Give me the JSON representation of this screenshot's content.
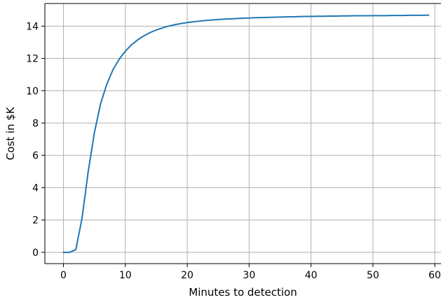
{
  "chart_data": {
    "type": "line",
    "title": "",
    "xlabel": "Minutes to detection",
    "ylabel": "Cost in $K",
    "xlim": [
      -3,
      61
    ],
    "ylim": [
      -0.7,
      15.4
    ],
    "xticks": [
      0,
      10,
      20,
      30,
      40,
      50,
      60
    ],
    "yticks": [
      0,
      2,
      4,
      6,
      8,
      10,
      12,
      14
    ],
    "grid": true,
    "legend": "none",
    "colors": {
      "line": "#1f77b4",
      "grid": "#b0b0b0",
      "axis": "#000000"
    },
    "series": [
      {
        "x": [
          0,
          1,
          2,
          3,
          4,
          5,
          6,
          7,
          8,
          9,
          10,
          11,
          12,
          13,
          14,
          15,
          16,
          17,
          18,
          19,
          20,
          21,
          22,
          23,
          24,
          25,
          26,
          27,
          28,
          29,
          30,
          31,
          32,
          33,
          34,
          35,
          36,
          37,
          38,
          39,
          40,
          41,
          42,
          43,
          44,
          45,
          46,
          47,
          48,
          49,
          50,
          51,
          52,
          53,
          54,
          55,
          56,
          57,
          58,
          59
        ],
        "values": [
          0,
          0,
          0.17,
          2.1,
          5.0,
          7.4,
          9.2,
          10.4,
          11.3,
          11.95,
          12.45,
          12.85,
          13.15,
          13.4,
          13.6,
          13.76,
          13.89,
          14.0,
          14.09,
          14.16,
          14.22,
          14.27,
          14.31,
          14.35,
          14.38,
          14.41,
          14.43,
          14.45,
          14.47,
          14.49,
          14.5,
          14.52,
          14.53,
          14.54,
          14.55,
          14.56,
          14.57,
          14.58,
          14.59,
          14.6,
          14.6,
          14.61,
          14.61,
          14.62,
          14.62,
          14.63,
          14.63,
          14.64,
          14.64,
          14.64,
          14.65,
          14.65,
          14.65,
          14.66,
          14.66,
          14.66,
          14.67,
          14.67,
          14.67,
          14.68
        ]
      }
    ]
  }
}
